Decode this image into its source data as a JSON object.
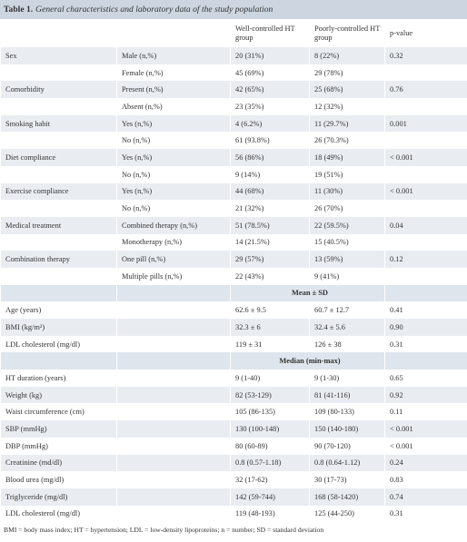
{
  "title": {
    "label": "Table 1.",
    "text": "General characteristics and laboratory data of the study population"
  },
  "header": [
    "Well-controlled HT group",
    "Poorly-controlled HT group",
    "p-value"
  ],
  "rows": [
    [
      "Sex",
      "Male (n,%)",
      "20 (31%)",
      "8 (22%)",
      "0.32"
    ],
    [
      null,
      "Female (n,%)",
      "45 (69%)",
      "29 (78%)",
      null
    ],
    [
      "Comorbidity",
      "Present (n,%)",
      "42 (65%)",
      "25 (68%)",
      "0.76"
    ],
    [
      null,
      "Absent (n,%)",
      "23 (35%)",
      "12 (32%)",
      null
    ],
    [
      "Smoking habit",
      "Yes (n,%)",
      "4 (6.2%)",
      "11 (29.7%)",
      "0.001"
    ],
    [
      null,
      "No (n,%)",
      "61 (93.8%)",
      "26 (70.3%)",
      null
    ],
    [
      "Diet compliance",
      "Yes (n,%)",
      "56 (86%)",
      "18 (49%)",
      "< 0.001"
    ],
    [
      null,
      "No (n,%)",
      "9 (14%)",
      "19 (51%)",
      null
    ],
    [
      "Exercise compliance",
      "Yes (n,%)",
      "44 (68%)",
      "11 (30%)",
      "< 0.001"
    ],
    [
      null,
      "No (n,%)",
      "21 (32%)",
      "26 (70%)",
      null
    ],
    [
      "Medical treatment",
      "Combined therapy (n,%)",
      "51 (78.5%)",
      "22 (59.5%)",
      "0.04"
    ],
    [
      null,
      "Monotherapy (n,%)",
      "14 (21.5%)",
      "15 (40.5%)",
      null
    ],
    [
      "Combination therapy",
      "One pill (n,%)",
      "29 (57%)",
      "13 (59%)",
      "0.12"
    ],
    [
      null,
      "Multiple pills (n,%)",
      "22 (43%)",
      "9 (41%)",
      null
    ],
    {
      "section": "Mean ± SD"
    },
    [
      "Age (years)",
      null,
      "62.6 ± 9.5",
      "60.7 ± 12.7",
      "0.41"
    ],
    [
      "BMI (kg/m²)",
      null,
      "32.3 ± 6",
      "32.4 ± 5.6",
      "0.90"
    ],
    [
      "LDL cholesterol (mg/dl)",
      null,
      "119 ± 31",
      "126 ± 38",
      "0.31"
    ],
    {
      "section": "Median (min-max)"
    },
    [
      "HT duration (years)",
      null,
      "9 (1-40)",
      "9 (1-30)",
      "0.65"
    ],
    [
      "Weight (kg)",
      null,
      "82 (53-129)",
      "81 (41-116)",
      "0.92"
    ],
    [
      "Waist circumference (cm)",
      null,
      "105 (86-135)",
      "109 (80-133)",
      "0.11"
    ],
    [
      "SBP (mmHg)",
      null,
      "130 (100-148)",
      "150 (140-180)",
      "< 0.001"
    ],
    [
      "DBP (mmHg)",
      null,
      "80 (60-89)",
      "90 (70-120)",
      "< 0.001"
    ],
    [
      "Creatinine (md/dl)",
      null,
      "0.8 (0.57-1.18)",
      "0.8 (0.64-1.12)",
      "0.24"
    ],
    [
      "Blood urea (mg/dl)",
      null,
      "32 (17-62)",
      "30 (17-73)",
      "0.83"
    ],
    [
      "Triglyceride (mg/dl)",
      null,
      "142 (59-744)",
      "168 (58-1420)",
      "0.74"
    ],
    [
      "LDL cholesterol (mg/dl)",
      null,
      "119 (48-193)",
      "125 (44-250)",
      "0.31"
    ]
  ],
  "footnote": "BMI = body mass index; HT = hypertension; LDL = low-density lipoproteins; n = number; SD = standard deviation"
}
